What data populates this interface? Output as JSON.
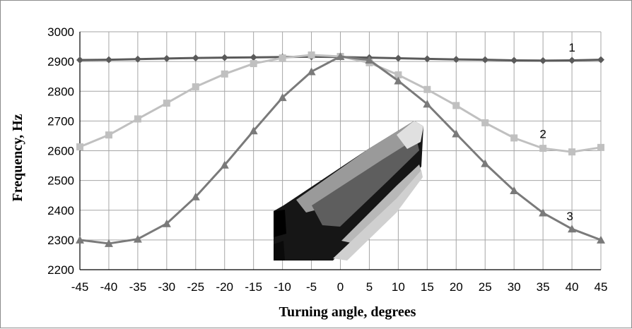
{
  "chart_data": {
    "type": "line",
    "xlabel": "Turning angle, degrees",
    "ylabel": "Frequency, Hz",
    "x": [
      -45,
      -40,
      -35,
      -30,
      -25,
      -20,
      -15,
      -10,
      -5,
      0,
      5,
      10,
      15,
      20,
      25,
      30,
      35,
      40,
      45
    ],
    "xlim": [
      -45,
      45
    ],
    "ylim": [
      2200,
      3000
    ],
    "yticks": [
      2200,
      2300,
      2400,
      2500,
      2600,
      2700,
      2800,
      2900,
      3000
    ],
    "grid": true,
    "legend": "none",
    "series": [
      {
        "name": "1",
        "marker": "diamond",
        "color": "#5a5a5a",
        "values": [
          2905,
          2906,
          2908,
          2910,
          2912,
          2913,
          2914,
          2915,
          2916,
          2915,
          2913,
          2911,
          2909,
          2907,
          2906,
          2904,
          2903,
          2904,
          2906
        ]
      },
      {
        "name": "2",
        "marker": "square",
        "color": "#c0c0c0",
        "values": [
          2613,
          2653,
          2707,
          2760,
          2815,
          2858,
          2893,
          2912,
          2922,
          2917,
          2896,
          2855,
          2806,
          2752,
          2694,
          2643,
          2608,
          2596,
          2611
        ]
      },
      {
        "name": "3",
        "marker": "triangle",
        "color": "#7a7a7a",
        "values": [
          2300,
          2288,
          2303,
          2355,
          2445,
          2552,
          2667,
          2779,
          2866,
          2917,
          2905,
          2835,
          2757,
          2657,
          2557,
          2466,
          2391,
          2337,
          2300
        ]
      }
    ]
  }
}
